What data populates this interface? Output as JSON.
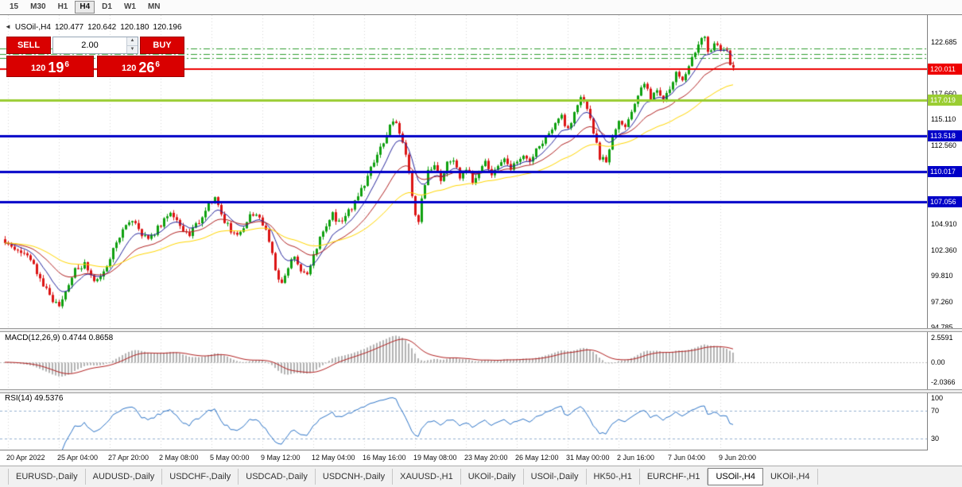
{
  "toolbar": {
    "timeframes": [
      {
        "label": "15",
        "active": false
      },
      {
        "label": "M30",
        "active": false
      },
      {
        "label": "H1",
        "active": false
      },
      {
        "label": "H4",
        "active": true
      },
      {
        "label": "D1",
        "active": false
      },
      {
        "label": "W1",
        "active": false
      },
      {
        "label": "MN",
        "active": false
      }
    ]
  },
  "chart": {
    "header": {
      "collapse_icon": "◄",
      "title": "USOil-,H4",
      "open": "120.477",
      "high": "120.642",
      "low": "120.180",
      "close": "120.196"
    },
    "trade_panel": {
      "sell_label": "SELL",
      "buy_label": "BUY",
      "volume": "2.00",
      "bid_main": "120",
      "bid_pips": "19",
      "bid_sup": "6",
      "ask_main": "120",
      "ask_pips": "26",
      "ask_sup": "6"
    },
    "colors": {
      "candle_up": "#0fa00f",
      "candle_down": "#dc1414",
      "background": "#ffffff",
      "axis_text": "#000000",
      "level_red": "#ee0000",
      "level_green": "#9acd32",
      "level_blue": "#0000c8",
      "trade_red": "#d90000"
    },
    "price_axis_ticks": [
      {
        "label": "122.685",
        "value": 122.685
      },
      {
        "label": "117.660",
        "value": 117.66
      },
      {
        "label": "115.110",
        "value": 115.11
      },
      {
        "label": "112.560",
        "value": 112.56
      },
      {
        "label": "104.910",
        "value": 104.91
      },
      {
        "label": "102.360",
        "value": 102.36
      },
      {
        "label": "99.810",
        "value": 99.81
      },
      {
        "label": "97.260",
        "value": 97.26
      },
      {
        "label": "94.785",
        "value": 94.785
      }
    ]
  },
  "chart_data": {
    "type": "candlestick",
    "symbol": "USOil-,H4",
    "timeframe": "H4",
    "bars": 230,
    "last_close": 120.196,
    "price_anchors": [
      [
        0,
        103.4
      ],
      [
        4,
        102.6
      ],
      [
        8,
        101.8
      ],
      [
        12,
        99.6
      ],
      [
        16,
        97.4
      ],
      [
        18,
        96.9
      ],
      [
        20,
        98.2
      ],
      [
        23,
        100.6
      ],
      [
        26,
        100.9
      ],
      [
        29,
        99.3
      ],
      [
        32,
        100.2
      ],
      [
        35,
        102.4
      ],
      [
        38,
        104.2
      ],
      [
        41,
        105.3
      ],
      [
        44,
        104.0
      ],
      [
        47,
        103.6
      ],
      [
        50,
        104.9
      ],
      [
        53,
        105.9
      ],
      [
        56,
        104.6
      ],
      [
        59,
        104.0
      ],
      [
        62,
        105.2
      ],
      [
        65,
        107.0
      ],
      [
        67,
        107.5
      ],
      [
        69,
        105.6
      ],
      [
        72,
        104.3
      ],
      [
        75,
        103.9
      ],
      [
        78,
        105.6
      ],
      [
        80,
        106.1
      ],
      [
        82,
        105.0
      ],
      [
        84,
        103.2
      ],
      [
        86,
        100.6
      ],
      [
        88,
        98.9
      ],
      [
        90,
        100.6
      ],
      [
        92,
        101.9
      ],
      [
        94,
        100.3
      ],
      [
        96,
        99.9
      ],
      [
        98,
        101.8
      ],
      [
        100,
        103.6
      ],
      [
        102,
        104.9
      ],
      [
        104,
        105.8
      ],
      [
        106,
        105.0
      ],
      [
        108,
        105.6
      ],
      [
        110,
        106.6
      ],
      [
        112,
        107.6
      ],
      [
        114,
        108.9
      ],
      [
        116,
        110.3
      ],
      [
        118,
        111.6
      ],
      [
        120,
        112.9
      ],
      [
        122,
        114.6
      ],
      [
        124,
        114.9
      ],
      [
        126,
        113.1
      ],
      [
        128,
        109.8
      ],
      [
        130,
        105.9
      ],
      [
        131,
        105.2
      ],
      [
        132,
        107.6
      ],
      [
        134,
        110.2
      ],
      [
        136,
        110.6
      ],
      [
        138,
        109.2
      ],
      [
        140,
        110.7
      ],
      [
        142,
        110.9
      ],
      [
        144,
        109.6
      ],
      [
        146,
        110.3
      ],
      [
        148,
        109.1
      ],
      [
        150,
        110.0
      ],
      [
        152,
        110.9
      ],
      [
        154,
        109.4
      ],
      [
        156,
        110.6
      ],
      [
        158,
        111.1
      ],
      [
        160,
        110.2
      ],
      [
        162,
        110.9
      ],
      [
        164,
        111.6
      ],
      [
        166,
        110.9
      ],
      [
        168,
        112.1
      ],
      [
        170,
        112.9
      ],
      [
        172,
        113.9
      ],
      [
        174,
        114.6
      ],
      [
        176,
        115.3
      ],
      [
        178,
        114.1
      ],
      [
        180,
        115.9
      ],
      [
        182,
        117.1
      ],
      [
        184,
        116.2
      ],
      [
        186,
        113.9
      ],
      [
        188,
        111.4
      ],
      [
        190,
        111.1
      ],
      [
        192,
        113.3
      ],
      [
        194,
        115.1
      ],
      [
        196,
        114.2
      ],
      [
        198,
        115.9
      ],
      [
        200,
        117.4
      ],
      [
        202,
        118.6
      ],
      [
        204,
        117.3
      ],
      [
        206,
        118.2
      ],
      [
        208,
        117.1
      ],
      [
        210,
        118.3
      ],
      [
        212,
        119.6
      ],
      [
        214,
        118.9
      ],
      [
        216,
        120.3
      ],
      [
        218,
        121.9
      ],
      [
        220,
        122.9
      ],
      [
        221,
        123.1
      ],
      [
        222,
        121.6
      ],
      [
        224,
        122.3
      ],
      [
        226,
        121.9
      ],
      [
        228,
        122.1
      ],
      [
        229,
        120.6
      ],
      [
        230,
        120.196
      ]
    ],
    "levels": [
      {
        "price": 120.011,
        "label": "120.011",
        "color": "#ee0000",
        "width": 2
      },
      {
        "price": 117.019,
        "label": "117.019",
        "color": "#9acd32",
        "width": 3
      },
      {
        "price": 113.518,
        "label": "113.518",
        "color": "#0000c8",
        "width": 3
      },
      {
        "price": 110.017,
        "label": "110.017",
        "color": "#0000c8",
        "width": 3
      },
      {
        "price": 107.056,
        "label": "107.056",
        "color": "#0000c8",
        "width": 3
      }
    ],
    "dashed_levels": [
      {
        "price": 122.05,
        "color": "#2f9e2f"
      },
      {
        "price": 121.55,
        "color": "#2f9e2f"
      },
      {
        "price": 121.15,
        "color": "#2f9e2f"
      }
    ],
    "moving_averages": [
      {
        "period": 9,
        "type": "ema",
        "color": "#27279e"
      },
      {
        "period": 22,
        "type": "ema",
        "color": "#b22222"
      },
      {
        "period": 48,
        "type": "ema",
        "color": "#ffd700"
      }
    ],
    "x_axis_labels": [
      {
        "label": "20 Apr 2022",
        "bar": 1
      },
      {
        "label": "25 Apr 04:00",
        "bar": 17
      },
      {
        "label": "27 Apr 20:00",
        "bar": 33
      },
      {
        "label": "2 May 08:00",
        "bar": 49
      },
      {
        "label": "5 May 00:00",
        "bar": 65
      },
      {
        "label": "9 May 12:00",
        "bar": 81
      },
      {
        "label": "12 May 04:00",
        "bar": 97
      },
      {
        "label": "16 May 16:00",
        "bar": 113
      },
      {
        "label": "19 May 08:00",
        "bar": 129
      },
      {
        "label": "23 May 20:00",
        "bar": 145
      },
      {
        "label": "26 May 12:00",
        "bar": 161
      },
      {
        "label": "31 May 00:00",
        "bar": 177
      },
      {
        "label": "2 Jun 16:00",
        "bar": 193
      },
      {
        "label": "7 Jun 04:00",
        "bar": 209
      },
      {
        "label": "9 Jun 20:00",
        "bar": 225
      }
    ],
    "indicators": {
      "macd": {
        "label": "MACD(12,26,9) 0.4744 0.8658",
        "fast": 12,
        "slow": 26,
        "signal": 9,
        "values": {
          "macd": 0.4744,
          "signal_value": 0.8658
        },
        "axis": [
          {
            "label": "2.5591",
            "value": 2.5591
          },
          {
            "label": "0.00",
            "value": 0
          },
          {
            "label": "-2.0366",
            "value": -2.0366
          }
        ]
      },
      "rsi": {
        "label": "RSI(14) 49.5376",
        "period": 14,
        "value": 49.5376,
        "levels": [
          70,
          30
        ],
        "axis": [
          {
            "label": "100",
            "value": 100
          },
          {
            "label": "70",
            "value": 70
          },
          {
            "label": "30",
            "value": 30
          }
        ]
      }
    }
  },
  "tabs": {
    "items": [
      {
        "label": "EURUSD-,Daily",
        "active": false
      },
      {
        "label": "AUDUSD-,Daily",
        "active": false
      },
      {
        "label": "USDCHF-,Daily",
        "active": false
      },
      {
        "label": "USDCAD-,Daily",
        "active": false
      },
      {
        "label": "USDCNH-,Daily",
        "active": false
      },
      {
        "label": "XAUUSD-,H1",
        "active": false
      },
      {
        "label": "UKOil-,Daily",
        "active": false
      },
      {
        "label": "USOil-,Daily",
        "active": false
      },
      {
        "label": "HK50-,H1",
        "active": false
      },
      {
        "label": "EURCHF-,H1",
        "active": false
      },
      {
        "label": "USOil-,H4",
        "active": true
      },
      {
        "label": "UKOil-,H4",
        "active": false
      }
    ]
  }
}
